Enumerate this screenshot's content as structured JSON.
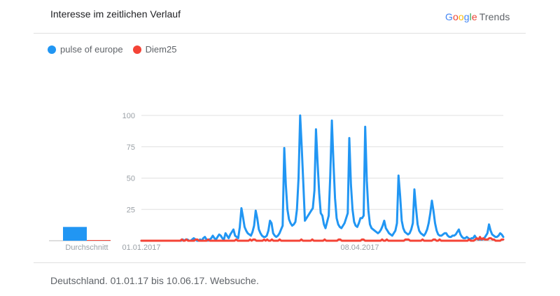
{
  "header": {
    "title": "Interesse im zeitlichen Verlauf"
  },
  "logo": {
    "google": "Google",
    "trends": "Trends",
    "colors": [
      "#4285F4",
      "#EA4335",
      "#FBBC05",
      "#4285F4",
      "#34A853",
      "#EA4335"
    ]
  },
  "legend": {
    "items": [
      {
        "label": "pulse of europe",
        "color": "#2196F3"
      },
      {
        "label": "Diem25",
        "color": "#F44336"
      }
    ]
  },
  "footer": {
    "text": "Deutschland. 01.01.17 bis 10.06.17. Websuche."
  },
  "chart_data": {
    "type": "line",
    "x_start": "01.01.2017",
    "x_end": "10.06.2017",
    "xticks": [
      "01.01.2017",
      "08.04.2017"
    ],
    "ylim": [
      0,
      100
    ],
    "yticks": [
      100,
      75,
      50,
      25
    ],
    "grid": true,
    "average_label": "Durchschnitt",
    "averages": [
      11,
      0
    ],
    "series": [
      {
        "name": "pulse of europe",
        "color": "#2196F3",
        "values": [
          0,
          0,
          0,
          0,
          0,
          0,
          0,
          0,
          0,
          0,
          0,
          0,
          0,
          0,
          0,
          0,
          0,
          0,
          0,
          0,
          0,
          0,
          0,
          0,
          0,
          0,
          1,
          0,
          1,
          1,
          0,
          0,
          1,
          2,
          1,
          0,
          0,
          1,
          0,
          2,
          3,
          1,
          0,
          1,
          2,
          4,
          2,
          1,
          3,
          5,
          4,
          2,
          1,
          6,
          4,
          2,
          5,
          7,
          9,
          4,
          3,
          2,
          11,
          26,
          19,
          11,
          8,
          6,
          5,
          4,
          7,
          12,
          24,
          18,
          9,
          6,
          4,
          3,
          3,
          4,
          8,
          16,
          14,
          6,
          4,
          3,
          4,
          6,
          9,
          12,
          74,
          45,
          25,
          17,
          14,
          12,
          13,
          15,
          25,
          50,
          100,
          75,
          46,
          16,
          18,
          20,
          22,
          24,
          26,
          40,
          89,
          62,
          38,
          22,
          20,
          13,
          10,
          15,
          20,
          52,
          96,
          62,
          34,
          18,
          13,
          11,
          10,
          12,
          14,
          18,
          22,
          82,
          45,
          25,
          15,
          12,
          11,
          14,
          18,
          18,
          20,
          91,
          48,
          24,
          13,
          10,
          9,
          8,
          7,
          6,
          7,
          9,
          12,
          16,
          10,
          8,
          6,
          5,
          4,
          6,
          8,
          14,
          52,
          36,
          16,
          10,
          7,
          6,
          5,
          6,
          9,
          14,
          41,
          26,
          13,
          8,
          6,
          5,
          4,
          6,
          9,
          14,
          22,
          32,
          24,
          14,
          8,
          5,
          4,
          4,
          5,
          6,
          6,
          4,
          3,
          3,
          4,
          4,
          5,
          7,
          9,
          5,
          3,
          2,
          2,
          3,
          2,
          1,
          2,
          2,
          4,
          2,
          1,
          1,
          1,
          1,
          2,
          4,
          6,
          13,
          8,
          5,
          4,
          3,
          3,
          4,
          6,
          5,
          3
        ]
      },
      {
        "name": "Diem25",
        "color": "#F44336",
        "values": [
          0,
          0,
          0,
          0,
          0,
          0,
          0,
          0,
          0,
          0,
          0,
          0,
          0,
          0,
          0,
          0,
          0,
          0,
          0,
          0,
          0,
          0,
          0,
          0,
          0,
          0,
          1,
          0,
          0,
          1,
          0,
          0,
          0,
          0,
          0,
          1,
          1,
          0,
          0,
          0,
          0,
          0,
          0,
          1,
          0,
          0,
          0,
          0,
          0,
          0,
          0,
          0,
          0,
          0,
          0,
          0,
          0,
          0,
          0,
          0,
          0,
          1,
          0,
          0,
          0,
          0,
          0,
          0,
          0,
          0,
          1,
          0,
          1,
          1,
          0,
          0,
          0,
          0,
          0,
          1,
          0,
          1,
          0,
          0,
          1,
          0,
          0,
          0,
          0,
          1,
          0,
          0,
          0,
          0,
          0,
          0,
          0,
          0,
          0,
          0,
          0,
          0,
          0,
          1,
          0,
          0,
          0,
          0,
          0,
          0,
          1,
          0,
          0,
          0,
          0,
          0,
          0,
          0,
          1,
          0,
          0,
          0,
          0,
          0,
          0,
          0,
          0,
          1,
          1,
          0,
          0,
          0,
          0,
          0,
          0,
          0,
          0,
          0,
          0,
          0,
          0,
          0,
          1,
          1,
          0,
          0,
          0,
          0,
          0,
          0,
          0,
          0,
          0,
          0,
          0,
          1,
          0,
          0,
          1,
          0,
          0,
          0,
          0,
          0,
          0,
          0,
          0,
          0,
          0,
          0,
          1,
          1,
          1,
          0,
          0,
          0,
          0,
          0,
          0,
          0,
          0,
          1,
          0,
          0,
          0,
          0,
          0,
          0,
          1,
          1,
          0,
          0,
          1,
          0,
          0,
          0,
          0,
          0,
          0,
          0,
          0,
          0,
          0,
          0,
          0,
          0,
          0,
          0,
          0,
          0,
          0,
          1,
          0,
          0,
          0,
          1,
          2,
          1,
          3,
          1,
          2,
          1,
          1,
          1,
          2,
          2,
          1,
          1,
          0,
          0,
          0,
          0,
          1,
          1
        ]
      }
    ]
  }
}
